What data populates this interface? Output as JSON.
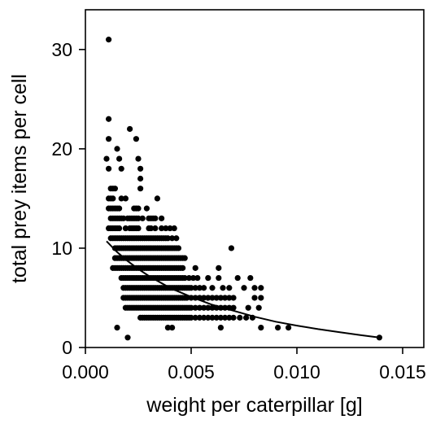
{
  "chart_data": {
    "type": "scatter",
    "xlabel": "weight per caterpillar [g]",
    "ylabel": "total prey items per cell",
    "xlim": [
      0.0,
      0.016
    ],
    "ylim": [
      0,
      34
    ],
    "xticks": [
      0.0,
      0.005,
      0.01,
      0.015
    ],
    "xtick_labels": [
      "0.000",
      "0.005",
      "0.010",
      "0.015"
    ],
    "yticks": [
      0,
      10,
      20,
      30
    ],
    "ytick_labels": [
      "0",
      "10",
      "20",
      "30"
    ],
    "grid": false,
    "legend": "none",
    "point_color": "#000000",
    "points": [
      [
        0.0011,
        31
      ],
      [
        0.0011,
        23
      ],
      [
        0.0011,
        21
      ],
      [
        0.001,
        19
      ],
      [
        0.0011,
        18
      ],
      [
        0.0015,
        20
      ],
      [
        0.0016,
        19
      ],
      [
        0.0017,
        18
      ],
      [
        0.0021,
        22
      ],
      [
        0.0024,
        21
      ],
      [
        0.0025,
        19
      ],
      [
        0.0026,
        18
      ],
      [
        0.0026,
        17
      ],
      [
        0.0012,
        16
      ],
      [
        0.0013,
        16
      ],
      [
        0.0014,
        16
      ],
      [
        0.0026,
        16
      ],
      [
        0.0011,
        15
      ],
      [
        0.0012,
        15
      ],
      [
        0.0013,
        15
      ],
      [
        0.0017,
        15
      ],
      [
        0.0019,
        15
      ],
      [
        0.0034,
        15
      ],
      [
        0.0011,
        14
      ],
      [
        0.0012,
        14
      ],
      [
        0.0013,
        14
      ],
      [
        0.0014,
        14
      ],
      [
        0.0015,
        14
      ],
      [
        0.0016,
        14
      ],
      [
        0.0023,
        14
      ],
      [
        0.0024,
        14
      ],
      [
        0.0025,
        14
      ],
      [
        0.0029,
        14
      ],
      [
        0.0012,
        13
      ],
      [
        0.0013,
        13
      ],
      [
        0.0014,
        13
      ],
      [
        0.0015,
        13
      ],
      [
        0.0016,
        13
      ],
      [
        0.0017,
        13
      ],
      [
        0.0018,
        13
      ],
      [
        0.002,
        13
      ],
      [
        0.0021,
        13
      ],
      [
        0.0022,
        13
      ],
      [
        0.0023,
        13
      ],
      [
        0.0024,
        13
      ],
      [
        0.0025,
        13
      ],
      [
        0.0027,
        13
      ],
      [
        0.003,
        13
      ],
      [
        0.0031,
        13
      ],
      [
        0.0032,
        13
      ],
      [
        0.0033,
        13
      ],
      [
        0.0036,
        13
      ],
      [
        0.0011,
        12
      ],
      [
        0.0012,
        12
      ],
      [
        0.0013,
        12
      ],
      [
        0.0014,
        12
      ],
      [
        0.0015,
        12
      ],
      [
        0.0016,
        12
      ],
      [
        0.0019,
        12
      ],
      [
        0.0021,
        12
      ],
      [
        0.0022,
        12
      ],
      [
        0.0023,
        12
      ],
      [
        0.0024,
        12
      ],
      [
        0.0025,
        12
      ],
      [
        0.003,
        12
      ],
      [
        0.0031,
        12
      ],
      [
        0.0033,
        12
      ],
      [
        0.0036,
        12
      ],
      [
        0.0038,
        12
      ],
      [
        0.004,
        12
      ],
      [
        0.0042,
        12
      ],
      [
        0.0012,
        11
      ],
      [
        0.0013,
        11
      ],
      [
        0.0014,
        11
      ],
      [
        0.0015,
        11
      ],
      [
        0.0016,
        11
      ],
      [
        0.0017,
        11
      ],
      [
        0.0018,
        11
      ],
      [
        0.0019,
        11
      ],
      [
        0.002,
        11
      ],
      [
        0.0021,
        11
      ],
      [
        0.0022,
        11
      ],
      [
        0.0023,
        11
      ],
      [
        0.0024,
        11
      ],
      [
        0.0025,
        11
      ],
      [
        0.0026,
        11
      ],
      [
        0.0027,
        11
      ],
      [
        0.0028,
        11
      ],
      [
        0.0029,
        11
      ],
      [
        0.003,
        11
      ],
      [
        0.0031,
        11
      ],
      [
        0.0032,
        11
      ],
      [
        0.0033,
        11
      ],
      [
        0.0034,
        11
      ],
      [
        0.0035,
        11
      ],
      [
        0.0036,
        11
      ],
      [
        0.0037,
        11
      ],
      [
        0.0038,
        11
      ],
      [
        0.0039,
        11
      ],
      [
        0.0041,
        11
      ],
      [
        0.0043,
        11
      ],
      [
        0.0014,
        10
      ],
      [
        0.0015,
        10
      ],
      [
        0.0016,
        10
      ],
      [
        0.0017,
        10
      ],
      [
        0.0018,
        10
      ],
      [
        0.0019,
        10
      ],
      [
        0.002,
        10
      ],
      [
        0.0021,
        10
      ],
      [
        0.0022,
        10
      ],
      [
        0.0023,
        10
      ],
      [
        0.0024,
        10
      ],
      [
        0.0025,
        10
      ],
      [
        0.0026,
        10
      ],
      [
        0.0027,
        10
      ],
      [
        0.0028,
        10
      ],
      [
        0.0029,
        10
      ],
      [
        0.003,
        10
      ],
      [
        0.0031,
        10
      ],
      [
        0.0032,
        10
      ],
      [
        0.0033,
        10
      ],
      [
        0.0034,
        10
      ],
      [
        0.0035,
        10
      ],
      [
        0.0036,
        10
      ],
      [
        0.0037,
        10
      ],
      [
        0.0038,
        10
      ],
      [
        0.0039,
        10
      ],
      [
        0.004,
        10
      ],
      [
        0.0041,
        10
      ],
      [
        0.0042,
        10
      ],
      [
        0.0043,
        10
      ],
      [
        0.0044,
        10
      ],
      [
        0.0069,
        10
      ],
      [
        0.0014,
        9
      ],
      [
        0.0015,
        9
      ],
      [
        0.0016,
        9
      ],
      [
        0.0017,
        9
      ],
      [
        0.0018,
        9
      ],
      [
        0.0019,
        9
      ],
      [
        0.002,
        9
      ],
      [
        0.0021,
        9
      ],
      [
        0.0022,
        9
      ],
      [
        0.0023,
        9
      ],
      [
        0.0024,
        9
      ],
      [
        0.0025,
        9
      ],
      [
        0.0026,
        9
      ],
      [
        0.0027,
        9
      ],
      [
        0.0028,
        9
      ],
      [
        0.0029,
        9
      ],
      [
        0.003,
        9
      ],
      [
        0.0031,
        9
      ],
      [
        0.0032,
        9
      ],
      [
        0.0033,
        9
      ],
      [
        0.0034,
        9
      ],
      [
        0.0035,
        9
      ],
      [
        0.0036,
        9
      ],
      [
        0.0037,
        9
      ],
      [
        0.0038,
        9
      ],
      [
        0.0039,
        9
      ],
      [
        0.004,
        9
      ],
      [
        0.0041,
        9
      ],
      [
        0.0042,
        9
      ],
      [
        0.0043,
        9
      ],
      [
        0.0044,
        9
      ],
      [
        0.0045,
        9
      ],
      [
        0.0046,
        9
      ],
      [
        0.0047,
        9
      ],
      [
        0.0013,
        8
      ],
      [
        0.0014,
        8
      ],
      [
        0.0015,
        8
      ],
      [
        0.0016,
        8
      ],
      [
        0.0017,
        8
      ],
      [
        0.0018,
        8
      ],
      [
        0.0019,
        8
      ],
      [
        0.002,
        8
      ],
      [
        0.0021,
        8
      ],
      [
        0.0022,
        8
      ],
      [
        0.0023,
        8
      ],
      [
        0.0024,
        8
      ],
      [
        0.0025,
        8
      ],
      [
        0.0026,
        8
      ],
      [
        0.0027,
        8
      ],
      [
        0.0028,
        8
      ],
      [
        0.0029,
        8
      ],
      [
        0.003,
        8
      ],
      [
        0.0031,
        8
      ],
      [
        0.0032,
        8
      ],
      [
        0.0033,
        8
      ],
      [
        0.0034,
        8
      ],
      [
        0.0035,
        8
      ],
      [
        0.0036,
        8
      ],
      [
        0.0037,
        8
      ],
      [
        0.0038,
        8
      ],
      [
        0.0039,
        8
      ],
      [
        0.004,
        8
      ],
      [
        0.0041,
        8
      ],
      [
        0.0042,
        8
      ],
      [
        0.0043,
        8
      ],
      [
        0.0044,
        8
      ],
      [
        0.0045,
        8
      ],
      [
        0.0046,
        8
      ],
      [
        0.0052,
        8
      ],
      [
        0.0063,
        8
      ],
      [
        0.0017,
        7
      ],
      [
        0.0018,
        7
      ],
      [
        0.0019,
        7
      ],
      [
        0.002,
        7
      ],
      [
        0.0021,
        7
      ],
      [
        0.0022,
        7
      ],
      [
        0.0023,
        7
      ],
      [
        0.0024,
        7
      ],
      [
        0.0025,
        7
      ],
      [
        0.0026,
        7
      ],
      [
        0.0027,
        7
      ],
      [
        0.0028,
        7
      ],
      [
        0.0029,
        7
      ],
      [
        0.003,
        7
      ],
      [
        0.0031,
        7
      ],
      [
        0.0032,
        7
      ],
      [
        0.0033,
        7
      ],
      [
        0.0034,
        7
      ],
      [
        0.0035,
        7
      ],
      [
        0.0036,
        7
      ],
      [
        0.0037,
        7
      ],
      [
        0.0038,
        7
      ],
      [
        0.0039,
        7
      ],
      [
        0.004,
        7
      ],
      [
        0.0041,
        7
      ],
      [
        0.0042,
        7
      ],
      [
        0.0043,
        7
      ],
      [
        0.0044,
        7
      ],
      [
        0.0045,
        7
      ],
      [
        0.0046,
        7
      ],
      [
        0.0047,
        7
      ],
      [
        0.0049,
        7
      ],
      [
        0.0051,
        7
      ],
      [
        0.0053,
        7
      ],
      [
        0.0058,
        7
      ],
      [
        0.0063,
        7
      ],
      [
        0.0072,
        7
      ],
      [
        0.0078,
        7
      ],
      [
        0.0018,
        6
      ],
      [
        0.0019,
        6
      ],
      [
        0.002,
        6
      ],
      [
        0.0021,
        6
      ],
      [
        0.0022,
        6
      ],
      [
        0.0023,
        6
      ],
      [
        0.0024,
        6
      ],
      [
        0.0025,
        6
      ],
      [
        0.0026,
        6
      ],
      [
        0.0027,
        6
      ],
      [
        0.0028,
        6
      ],
      [
        0.0029,
        6
      ],
      [
        0.003,
        6
      ],
      [
        0.0031,
        6
      ],
      [
        0.0032,
        6
      ],
      [
        0.0033,
        6
      ],
      [
        0.0034,
        6
      ],
      [
        0.0035,
        6
      ],
      [
        0.0036,
        6
      ],
      [
        0.0037,
        6
      ],
      [
        0.0038,
        6
      ],
      [
        0.0039,
        6
      ],
      [
        0.004,
        6
      ],
      [
        0.0041,
        6
      ],
      [
        0.0042,
        6
      ],
      [
        0.0043,
        6
      ],
      [
        0.0044,
        6
      ],
      [
        0.0045,
        6
      ],
      [
        0.0046,
        6
      ],
      [
        0.0047,
        6
      ],
      [
        0.0048,
        6
      ],
      [
        0.0049,
        6
      ],
      [
        0.005,
        6
      ],
      [
        0.0052,
        6
      ],
      [
        0.0054,
        6
      ],
      [
        0.0056,
        6
      ],
      [
        0.006,
        6
      ],
      [
        0.0065,
        6
      ],
      [
        0.0068,
        6
      ],
      [
        0.0075,
        6
      ],
      [
        0.008,
        6
      ],
      [
        0.0083,
        6
      ],
      [
        0.0018,
        5
      ],
      [
        0.0019,
        5
      ],
      [
        0.002,
        5
      ],
      [
        0.0021,
        5
      ],
      [
        0.0022,
        5
      ],
      [
        0.0023,
        5
      ],
      [
        0.0024,
        5
      ],
      [
        0.0025,
        5
      ],
      [
        0.0026,
        5
      ],
      [
        0.0027,
        5
      ],
      [
        0.0028,
        5
      ],
      [
        0.0029,
        5
      ],
      [
        0.003,
        5
      ],
      [
        0.0031,
        5
      ],
      [
        0.0032,
        5
      ],
      [
        0.0033,
        5
      ],
      [
        0.0034,
        5
      ],
      [
        0.0035,
        5
      ],
      [
        0.0036,
        5
      ],
      [
        0.0037,
        5
      ],
      [
        0.0038,
        5
      ],
      [
        0.0039,
        5
      ],
      [
        0.004,
        5
      ],
      [
        0.0041,
        5
      ],
      [
        0.0042,
        5
      ],
      [
        0.0043,
        5
      ],
      [
        0.0044,
        5
      ],
      [
        0.0045,
        5
      ],
      [
        0.0046,
        5
      ],
      [
        0.0047,
        5
      ],
      [
        0.0048,
        5
      ],
      [
        0.005,
        5
      ],
      [
        0.0052,
        5
      ],
      [
        0.0054,
        5
      ],
      [
        0.0056,
        5
      ],
      [
        0.0058,
        5
      ],
      [
        0.006,
        5
      ],
      [
        0.0062,
        5
      ],
      [
        0.0064,
        5
      ],
      [
        0.0066,
        5
      ],
      [
        0.0068,
        5
      ],
      [
        0.007,
        5
      ],
      [
        0.008,
        5
      ],
      [
        0.0083,
        5
      ],
      [
        0.0019,
        4
      ],
      [
        0.002,
        4
      ],
      [
        0.0021,
        4
      ],
      [
        0.0022,
        4
      ],
      [
        0.0023,
        4
      ],
      [
        0.0024,
        4
      ],
      [
        0.0025,
        4
      ],
      [
        0.0026,
        4
      ],
      [
        0.0027,
        4
      ],
      [
        0.0028,
        4
      ],
      [
        0.0029,
        4
      ],
      [
        0.003,
        4
      ],
      [
        0.0031,
        4
      ],
      [
        0.0032,
        4
      ],
      [
        0.0033,
        4
      ],
      [
        0.0034,
        4
      ],
      [
        0.0035,
        4
      ],
      [
        0.0036,
        4
      ],
      [
        0.0037,
        4
      ],
      [
        0.0038,
        4
      ],
      [
        0.0039,
        4
      ],
      [
        0.004,
        4
      ],
      [
        0.0041,
        4
      ],
      [
        0.0042,
        4
      ],
      [
        0.0043,
        4
      ],
      [
        0.0044,
        4
      ],
      [
        0.0045,
        4
      ],
      [
        0.0046,
        4
      ],
      [
        0.0047,
        4
      ],
      [
        0.0048,
        4
      ],
      [
        0.0049,
        4
      ],
      [
        0.005,
        4
      ],
      [
        0.0052,
        4
      ],
      [
        0.0054,
        4
      ],
      [
        0.0056,
        4
      ],
      [
        0.0058,
        4
      ],
      [
        0.006,
        4
      ],
      [
        0.0062,
        4
      ],
      [
        0.0064,
        4
      ],
      [
        0.0066,
        4
      ],
      [
        0.0068,
        4
      ],
      [
        0.007,
        4
      ],
      [
        0.0077,
        4
      ],
      [
        0.0082,
        4
      ],
      [
        0.0026,
        3
      ],
      [
        0.0027,
        3
      ],
      [
        0.0028,
        3
      ],
      [
        0.0029,
        3
      ],
      [
        0.003,
        3
      ],
      [
        0.0031,
        3
      ],
      [
        0.0032,
        3
      ],
      [
        0.0033,
        3
      ],
      [
        0.0034,
        3
      ],
      [
        0.0035,
        3
      ],
      [
        0.0036,
        3
      ],
      [
        0.0037,
        3
      ],
      [
        0.0038,
        3
      ],
      [
        0.0039,
        3
      ],
      [
        0.004,
        3
      ],
      [
        0.0041,
        3
      ],
      [
        0.0042,
        3
      ],
      [
        0.0043,
        3
      ],
      [
        0.0044,
        3
      ],
      [
        0.0045,
        3
      ],
      [
        0.0046,
        3
      ],
      [
        0.0047,
        3
      ],
      [
        0.0048,
        3
      ],
      [
        0.0049,
        3
      ],
      [
        0.005,
        3
      ],
      [
        0.0052,
        3
      ],
      [
        0.0054,
        3
      ],
      [
        0.0056,
        3
      ],
      [
        0.0058,
        3
      ],
      [
        0.006,
        3
      ],
      [
        0.0062,
        3
      ],
      [
        0.0064,
        3
      ],
      [
        0.0066,
        3
      ],
      [
        0.0068,
        3
      ],
      [
        0.007,
        3
      ],
      [
        0.0073,
        3
      ],
      [
        0.0076,
        3
      ],
      [
        0.0079,
        3
      ],
      [
        0.0015,
        2
      ],
      [
        0.0039,
        2
      ],
      [
        0.0041,
        2
      ],
      [
        0.0064,
        2
      ],
      [
        0.0083,
        2
      ],
      [
        0.0091,
        2
      ],
      [
        0.0096,
        2
      ],
      [
        0.002,
        1
      ],
      [
        0.0139,
        1
      ]
    ],
    "fit_line": {
      "x": [
        0.001,
        0.0015,
        0.002,
        0.0025,
        0.003,
        0.004,
        0.005,
        0.006,
        0.007,
        0.008,
        0.009,
        0.01,
        0.011,
        0.012,
        0.013,
        0.0139
      ],
      "y": [
        10.7,
        9.6,
        8.7,
        7.9,
        7.2,
        6.0,
        5.1,
        4.3,
        3.7,
        3.1,
        2.6,
        2.2,
        1.85,
        1.55,
        1.25,
        1.0
      ]
    }
  }
}
